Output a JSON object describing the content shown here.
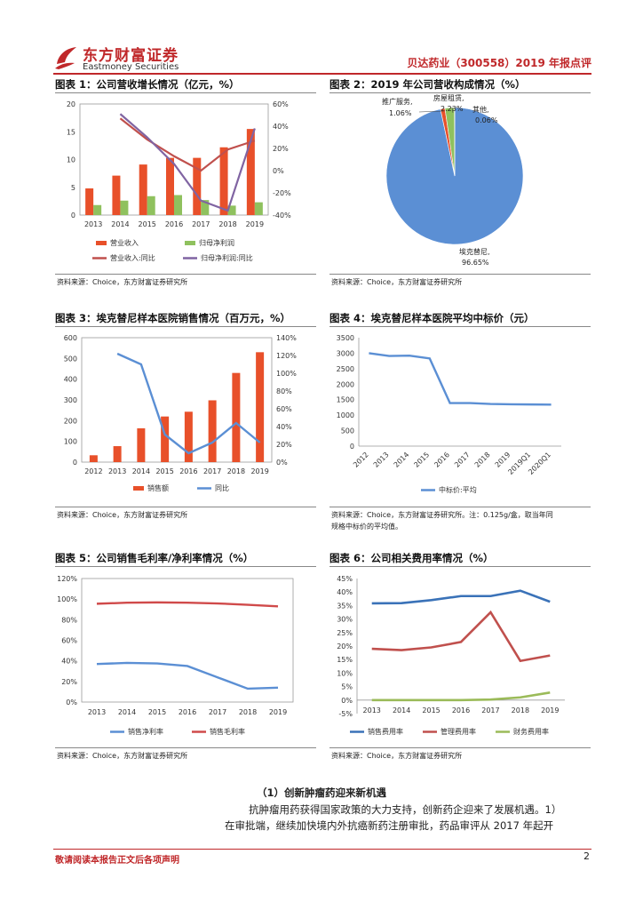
{
  "header": {
    "brand_cn": "东方财富证券",
    "brand_en": "Eastmoney Securities",
    "report_title": "贝达药业（300558）2019 年报点评",
    "brand_color": "#c0282a"
  },
  "figures": [
    {
      "title": "图表 1：公司营收增长情况（亿元，%）",
      "source": "资料来源：Choice，东方财富证券研究所"
    },
    {
      "title": "图表 2：2019 年公司营收构成情况（%）",
      "source": "资料来源：Choice，东方财富证券研究所"
    },
    {
      "title": "图表 3：埃克替尼样本医院销售情况（百万元，%）",
      "source": "资料来源：Choice，东方财富证券研究所"
    },
    {
      "title": "图表 4：埃克替尼样本医院平均中标价（元）",
      "source": "资料来源：Choice，东方财富证券研究所。注：0.125g/盒，取当年同",
      "source2": "规格中标价的平均值。"
    },
    {
      "title": "图表 5：公司销售毛利率/净利率情况（%）",
      "source": "资料来源：Choice，东方财富证券研究所"
    },
    {
      "title": "图表 6：公司相关费用率情况（%）",
      "source": "资料来源：Choice，东方财富证券研究所"
    }
  ],
  "chart_data": [
    {
      "type": "bar",
      "categories": [
        "2013",
        "2014",
        "2015",
        "2016",
        "2017",
        "2018",
        "2019"
      ],
      "series": [
        {
          "name": "营业收入",
          "kind": "bar",
          "axis": "left",
          "color": "#e8502a",
          "values": [
            4.8,
            7.1,
            9.1,
            10.3,
            10.3,
            12.2,
            15.5
          ]
        },
        {
          "name": "归母净利润",
          "kind": "bar",
          "axis": "left",
          "color": "#8fc15e",
          "values": [
            1.8,
            2.6,
            3.4,
            3.6,
            2.7,
            1.7,
            2.3
          ]
        },
        {
          "name": "营业收入:同比",
          "kind": "line",
          "axis": "right",
          "color": "#c0504d",
          "values": [
            null,
            47,
            28,
            13,
            0,
            19,
            27
          ]
        },
        {
          "name": "归母净利润:同比",
          "kind": "line",
          "axis": "right",
          "color": "#8064a2",
          "values": [
            null,
            51,
            30,
            6,
            -27,
            -36,
            38
          ]
        }
      ],
      "ylim": [
        0,
        20
      ],
      "yticks": [
        "0",
        "5",
        "10",
        "15",
        "20"
      ],
      "y2lim": [
        -40,
        60
      ],
      "y2ticks": [
        "-40%",
        "-20%",
        "0%",
        "20%",
        "40%",
        "60%"
      ]
    },
    {
      "type": "pie",
      "slices": [
        {
          "label": "埃克替尼,",
          "value_label": "96.65%",
          "value": 96.65,
          "color": "#5b8fd4"
        },
        {
          "label": "推广服务,",
          "value_label": "1.06%",
          "value": 1.06,
          "color": "#e8502a"
        },
        {
          "label": "房屋租赁,",
          "value_label": "2.23%",
          "value": 2.23,
          "color": "#8fc15e"
        },
        {
          "label": "其他,",
          "value_label": "0.06%",
          "value": 0.06,
          "color": "#9b79c9"
        }
      ]
    },
    {
      "type": "bar",
      "categories": [
        "2012",
        "2013",
        "2014",
        "2015",
        "2016",
        "2017",
        "2018",
        "2019"
      ],
      "series": [
        {
          "name": "销售额",
          "kind": "bar",
          "axis": "left",
          "color": "#e8502a",
          "values": [
            33,
            77,
            163,
            220,
            243,
            298,
            430,
            530
          ]
        },
        {
          "name": "同比",
          "kind": "line",
          "axis": "right",
          "color": "#5b8fd4",
          "values": [
            null,
            122,
            110,
            31,
            10,
            22,
            44,
            22
          ]
        }
      ],
      "ylim": [
        0,
        600
      ],
      "yticks": [
        "0",
        "100",
        "200",
        "300",
        "400",
        "500",
        "600"
      ],
      "y2lim": [
        0,
        140
      ],
      "y2ticks": [
        "0%",
        "20%",
        "40%",
        "60%",
        "80%",
        "100%",
        "120%",
        "140%"
      ]
    },
    {
      "type": "line",
      "categories": [
        "2012",
        "2013",
        "2014",
        "2015",
        "2016",
        "2017",
        "2018",
        "2019",
        "2019Q1",
        "2020Q1"
      ],
      "series": [
        {
          "name": "中标价:平均",
          "color": "#5b8fd4",
          "values": [
            3000,
            2910,
            2920,
            2830,
            1390,
            1390,
            1360,
            1350,
            1345,
            1340
          ]
        }
      ],
      "ylim": [
        0,
        3500
      ],
      "yticks": [
        "0",
        "500",
        "1000",
        "1500",
        "2000",
        "2500",
        "3000",
        "3500"
      ]
    },
    {
      "type": "line",
      "categories": [
        "2013",
        "2014",
        "2015",
        "2016",
        "2017",
        "2018",
        "2019"
      ],
      "series": [
        {
          "name": "销售净利率",
          "color": "#5b8fd4",
          "values": [
            37,
            38,
            37.5,
            35,
            24,
            13,
            14
          ]
        },
        {
          "name": "销售毛利率",
          "color": "#d04a4a",
          "values": [
            95.5,
            96.5,
            96.8,
            96.5,
            95.8,
            94.5,
            93
          ]
        }
      ],
      "ylim": [
        0,
        120
      ],
      "yticks": [
        "0%",
        "20%",
        "40%",
        "60%",
        "80%",
        "100%",
        "120%"
      ]
    },
    {
      "type": "line",
      "categories": [
        "2013",
        "2014",
        "2015",
        "2016",
        "2017",
        "2018",
        "2019"
      ],
      "series": [
        {
          "name": "销售费用率",
          "color": "#3a72b8",
          "values": [
            35.8,
            35.9,
            37,
            38.5,
            38.5,
            40.5,
            36.4
          ]
        },
        {
          "name": "管理费用率",
          "color": "#c0504d",
          "values": [
            19,
            18.5,
            19.5,
            21.5,
            32.5,
            14.5,
            16.5
          ]
        },
        {
          "name": "财务费用率",
          "color": "#9bbb59",
          "values": [
            0,
            0,
            0,
            0,
            0.2,
            1,
            2.8
          ]
        }
      ],
      "ylim": [
        -5,
        45
      ],
      "yticks": [
        "-5%",
        "0%",
        "5%",
        "10%",
        "15%",
        "20%",
        "25%",
        "30%",
        "35%",
        "40%",
        "45%"
      ]
    }
  ],
  "section": {
    "heading": "（1）创新肿瘤药迎来新机遇",
    "line1": "抗肿瘤用药获得国家政策的大力支持，创新药企迎来了发展机遇。1）",
    "line2": "在审批端，继续加快境内外抗癌新药注册审批，药品审评从 2017 年起开"
  },
  "footer": {
    "disclaimer": "敬请阅读本报告正文后各项声明",
    "page_number": "2"
  }
}
